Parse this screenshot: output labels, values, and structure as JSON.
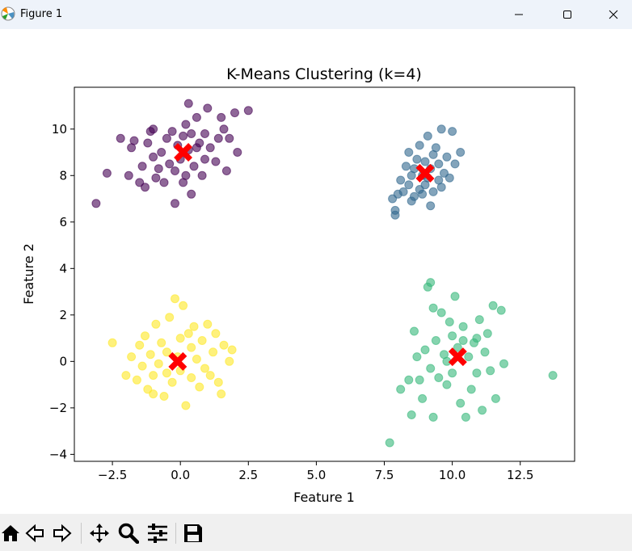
{
  "window": {
    "title": "Figure 1",
    "icon": "matplotlib-icon",
    "controls": [
      "minimize-icon",
      "maximize-icon",
      "close-icon"
    ]
  },
  "toolbar": {
    "buttons": [
      "home-icon",
      "back-icon",
      "forward-icon",
      "pan-icon",
      "zoom-icon",
      "configure-subplots-icon",
      "save-icon"
    ]
  },
  "colors": {
    "cluster_0": "#440154",
    "cluster_1": "#31688e",
    "cluster_2": "#35b779",
    "cluster_3": "#fde725",
    "centroid": "#ff0000"
  },
  "chart_data": {
    "type": "scatter",
    "title": "K-Means Clustering (k=4)",
    "xlabel": "Feature 1",
    "ylabel": "Feature 2",
    "xlim": [
      -3.9,
      14.5
    ],
    "ylim": [
      -4.3,
      11.8
    ],
    "xticks": [
      -2.5,
      0.0,
      2.5,
      5.0,
      7.5,
      10.0,
      12.5
    ],
    "xtick_labels": [
      "−2.5",
      "0.0",
      "2.5",
      "5.0",
      "7.5",
      "10.0",
      "12.5"
    ],
    "yticks": [
      -4,
      -2,
      0,
      2,
      4,
      6,
      8,
      10
    ],
    "ytick_labels": [
      "−4",
      "−2",
      "0",
      "2",
      "4",
      "6",
      "8",
      "10"
    ],
    "grid": false,
    "marker_alpha": 0.6,
    "series": [
      {
        "cluster": 0,
        "points": [
          [
            -3.1,
            6.8
          ],
          [
            -2.7,
            8.1
          ],
          [
            -2.2,
            9.6
          ],
          [
            -1.9,
            8.0
          ],
          [
            -1.8,
            9.2
          ],
          [
            -1.7,
            9.5
          ],
          [
            -1.5,
            7.7
          ],
          [
            -1.4,
            8.4
          ],
          [
            -1.3,
            7.5
          ],
          [
            -1.2,
            9.4
          ],
          [
            -1.1,
            9.9
          ],
          [
            -1.0,
            8.8
          ],
          [
            -0.9,
            7.9
          ],
          [
            -0.8,
            8.3
          ],
          [
            -0.7,
            9.0
          ],
          [
            -0.6,
            7.7
          ],
          [
            -0.5,
            9.6
          ],
          [
            -0.4,
            8.5
          ],
          [
            -0.3,
            9.9
          ],
          [
            -0.2,
            8.2
          ],
          [
            -0.1,
            9.3
          ],
          [
            0.0,
            8.7
          ],
          [
            0.1,
            7.7
          ],
          [
            0.1,
            9.7
          ],
          [
            0.2,
            8.0
          ],
          [
            0.3,
            9.1
          ],
          [
            0.3,
            11.1
          ],
          [
            0.4,
            9.8
          ],
          [
            0.5,
            8.4
          ],
          [
            0.6,
            10.5
          ],
          [
            0.7,
            9.4
          ],
          [
            0.8,
            8.0
          ],
          [
            0.9,
            9.8
          ],
          [
            0.9,
            8.7
          ],
          [
            1.0,
            10.9
          ],
          [
            1.1,
            9.2
          ],
          [
            1.3,
            8.6
          ],
          [
            1.4,
            9.6
          ],
          [
            1.5,
            10.5
          ],
          [
            1.6,
            10.0
          ],
          [
            1.7,
            8.2
          ],
          [
            1.8,
            9.6
          ],
          [
            2.0,
            10.7
          ],
          [
            2.1,
            9.0
          ],
          [
            2.5,
            10.8
          ],
          [
            -0.2,
            6.8
          ],
          [
            0.4,
            7.2
          ],
          [
            -1.0,
            10.0
          ],
          [
            0.2,
            10.2
          ],
          [
            0.6,
            9.2
          ]
        ]
      },
      {
        "cluster": 1,
        "points": [
          [
            7.8,
            7.0
          ],
          [
            7.9,
            6.3
          ],
          [
            7.9,
            6.5
          ],
          [
            8.0,
            7.2
          ],
          [
            8.1,
            7.8
          ],
          [
            8.2,
            7.3
          ],
          [
            8.3,
            8.4
          ],
          [
            8.4,
            7.6
          ],
          [
            8.4,
            9.0
          ],
          [
            8.5,
            6.9
          ],
          [
            8.6,
            8.3
          ],
          [
            8.6,
            7.1
          ],
          [
            8.7,
            8.7
          ],
          [
            8.8,
            7.4
          ],
          [
            8.8,
            9.3
          ],
          [
            8.9,
            8.0
          ],
          [
            9.0,
            7.6
          ],
          [
            9.0,
            8.6
          ],
          [
            9.1,
            9.7
          ],
          [
            9.1,
            7.9
          ],
          [
            9.2,
            8.3
          ],
          [
            9.2,
            6.7
          ],
          [
            9.3,
            7.3
          ],
          [
            9.3,
            8.9
          ],
          [
            9.4,
            9.2
          ],
          [
            9.5,
            7.8
          ],
          [
            9.5,
            8.5
          ],
          [
            9.6,
            10.0
          ],
          [
            9.7,
            8.1
          ],
          [
            9.8,
            8.8
          ],
          [
            9.9,
            7.9
          ],
          [
            10.0,
            9.9
          ],
          [
            10.1,
            8.5
          ],
          [
            10.3,
            9.0
          ],
          [
            8.9,
            7.2
          ],
          [
            9.6,
            7.5
          ],
          [
            8.5,
            8.0
          ]
        ]
      },
      {
        "cluster": 2,
        "points": [
          [
            7.7,
            -3.5
          ],
          [
            8.1,
            -1.2
          ],
          [
            8.4,
            -0.8
          ],
          [
            8.5,
            -2.3
          ],
          [
            8.6,
            1.3
          ],
          [
            8.7,
            0.2
          ],
          [
            8.8,
            -0.8
          ],
          [
            8.9,
            -1.6
          ],
          [
            9.0,
            0.5
          ],
          [
            9.1,
            3.2
          ],
          [
            9.2,
            3.4
          ],
          [
            9.3,
            -2.4
          ],
          [
            9.3,
            2.3
          ],
          [
            9.4,
            0.9
          ],
          [
            9.5,
            -0.7
          ],
          [
            9.6,
            2.1
          ],
          [
            9.7,
            0.3
          ],
          [
            9.8,
            -1.0
          ],
          [
            9.9,
            1.7
          ],
          [
            10.0,
            -0.5
          ],
          [
            10.0,
            1.1
          ],
          [
            10.1,
            2.8
          ],
          [
            10.2,
            0.6
          ],
          [
            10.3,
            -1.8
          ],
          [
            10.4,
            1.5
          ],
          [
            10.5,
            -2.4
          ],
          [
            10.6,
            0.2
          ],
          [
            10.7,
            -1.2
          ],
          [
            10.8,
            0.8
          ],
          [
            10.9,
            -0.5
          ],
          [
            11.0,
            1.8
          ],
          [
            11.1,
            -2.1
          ],
          [
            11.2,
            0.4
          ],
          [
            11.3,
            1.2
          ],
          [
            11.4,
            -0.4
          ],
          [
            11.5,
            2.4
          ],
          [
            11.6,
            -1.6
          ],
          [
            11.8,
            2.2
          ],
          [
            11.9,
            -0.1
          ],
          [
            13.7,
            -0.6
          ],
          [
            9.8,
            0.0
          ],
          [
            10.4,
            0.9
          ],
          [
            9.2,
            -0.3
          ],
          [
            10.9,
            1.0
          ]
        ]
      },
      {
        "cluster": 3,
        "points": [
          [
            -2.5,
            0.8
          ],
          [
            -2.0,
            -0.6
          ],
          [
            -1.8,
            0.2
          ],
          [
            -1.6,
            -0.8
          ],
          [
            -1.5,
            0.7
          ],
          [
            -1.4,
            -0.2
          ],
          [
            -1.3,
            1.1
          ],
          [
            -1.2,
            -1.2
          ],
          [
            -1.1,
            0.3
          ],
          [
            -1.0,
            -0.6
          ],
          [
            -0.9,
            1.6
          ],
          [
            -0.8,
            -0.1
          ],
          [
            -0.7,
            0.8
          ],
          [
            -0.6,
            -1.5
          ],
          [
            -0.5,
            0.4
          ],
          [
            -0.4,
            1.9
          ],
          [
            -0.3,
            -0.9
          ],
          [
            -0.2,
            2.7
          ],
          [
            -0.1,
            0.2
          ],
          [
            0.0,
            -0.4
          ],
          [
            0.1,
            2.4
          ],
          [
            0.2,
            -1.9
          ],
          [
            0.3,
            1.2
          ],
          [
            0.4,
            -0.7
          ],
          [
            0.5,
            1.5
          ],
          [
            0.6,
            0.1
          ],
          [
            0.7,
            -1.1
          ],
          [
            0.8,
            0.9
          ],
          [
            0.9,
            -0.3
          ],
          [
            1.0,
            1.6
          ],
          [
            1.1,
            -0.6
          ],
          [
            1.2,
            0.4
          ],
          [
            1.3,
            1.2
          ],
          [
            1.4,
            -0.9
          ],
          [
            1.5,
            -1.4
          ],
          [
            1.6,
            0.7
          ],
          [
            1.8,
            0.0
          ],
          [
            1.9,
            0.5
          ],
          [
            -1.0,
            -1.4
          ],
          [
            0.0,
            1.0
          ],
          [
            0.4,
            0.6
          ],
          [
            -0.5,
            -0.5
          ]
        ]
      }
    ],
    "centroids": [
      [
        0.1,
        9.0
      ],
      [
        9.0,
        8.1
      ],
      [
        10.2,
        0.2
      ],
      [
        -0.1,
        0.0
      ]
    ]
  }
}
